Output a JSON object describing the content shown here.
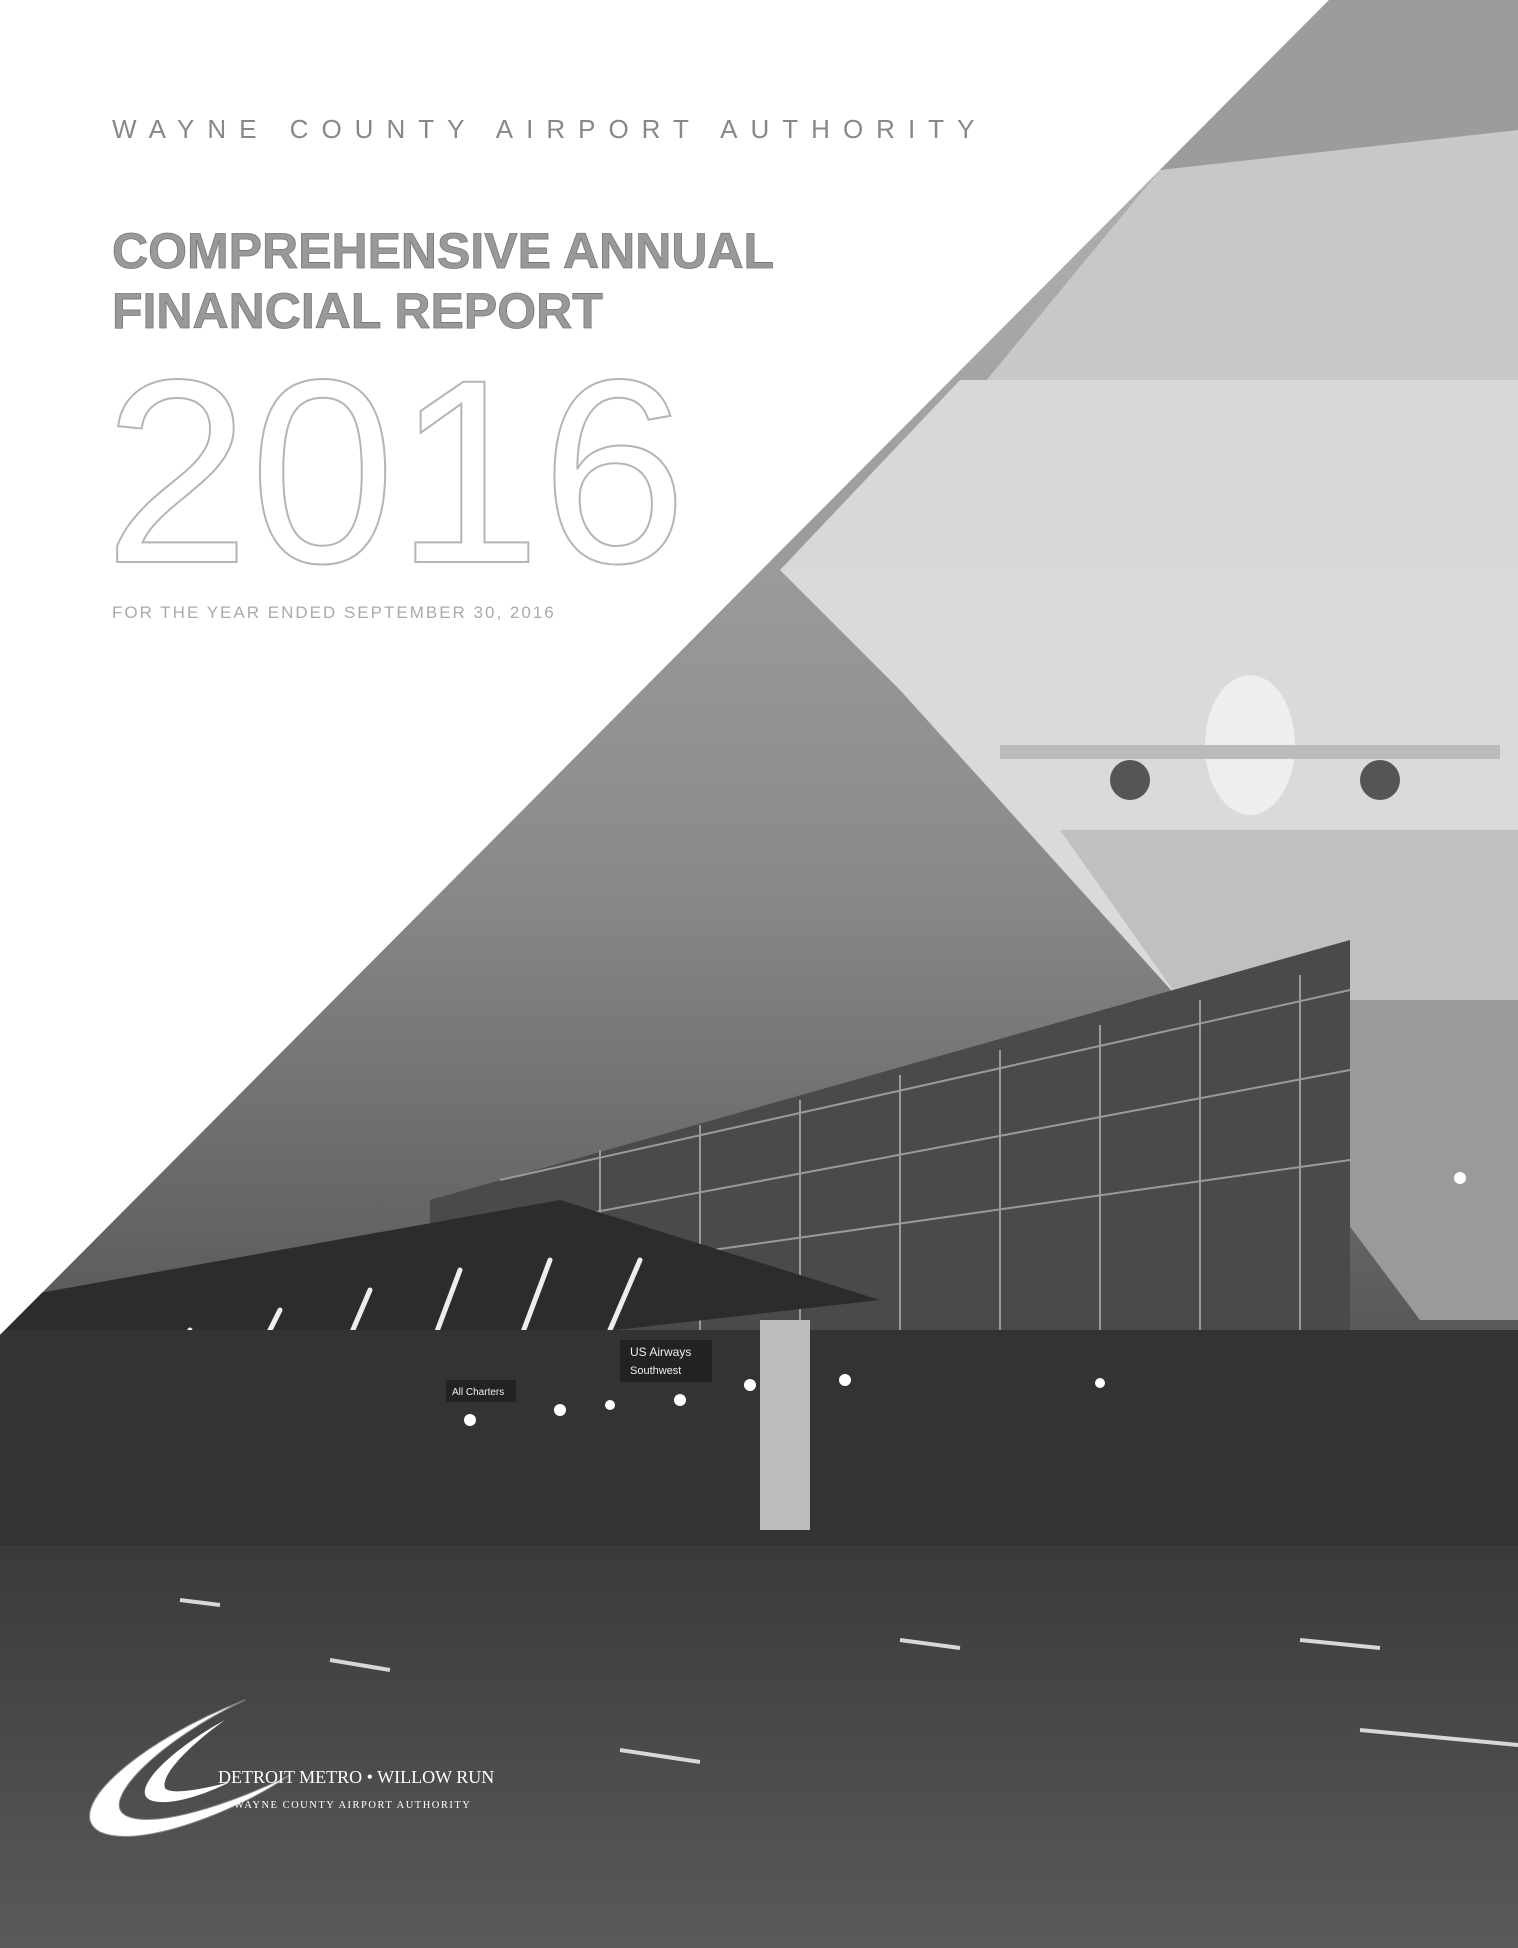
{
  "header": {
    "organization": "WAYNE COUNTY AIRPORT AUTHORITY"
  },
  "title": {
    "lines": [
      "COMPREHENSIVE ANNUAL",
      "FINANCIAL REPORT"
    ]
  },
  "year": "2016",
  "subtitle": "FOR THE YEAR ENDED SEPTEMBER 30, 2016",
  "photo": {
    "signs": [
      "US Airways",
      "Southwest",
      "All Charters"
    ]
  },
  "logo": {
    "name": "DETROIT METRO • WILLOW RUN",
    "organization": "WAYNE COUNTY AIRPORT AUTHORITY"
  }
}
